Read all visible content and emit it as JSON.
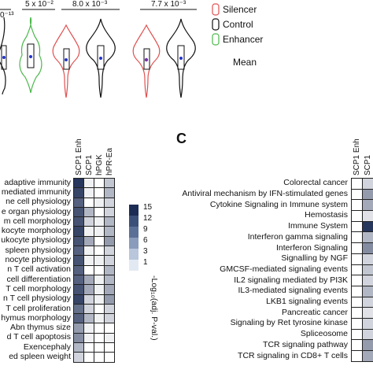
{
  "violin_panel": {
    "pvalues": [
      "5 x 10⁻²",
      "8.0 x 10⁻³",
      "7.7 x 10⁻³"
    ],
    "partial_pvalue": "0⁻¹³",
    "legend": {
      "items": [
        {
          "label": "Silencer",
          "color": "#e05050"
        },
        {
          "label": "Control",
          "color": "#111111"
        },
        {
          "label": "Enhancer",
          "color": "#4cb84c"
        }
      ],
      "mean_label": "Mean"
    }
  },
  "panel_c_letter": "C",
  "colorbar": {
    "ticks": [
      "15",
      "12",
      "9",
      "6",
      "3",
      "1"
    ],
    "title": "-Log₁₀(adj. P-val.)",
    "colors": [
      "#1c2d55",
      "#3b5078",
      "#5b7097",
      "#8a9cbb",
      "#b9c6dc",
      "#e3e9f3"
    ]
  },
  "chart_data": [
    {
      "type": "heatmap",
      "panel": "B",
      "columns": [
        "SCP1 Enh",
        "SCP1",
        "hPGK",
        "hPR-Ea"
      ],
      "rows": [
        "adaptive immunity",
        "mediated immunity",
        "ne cell physiology",
        "e organ physiology",
        "m cell morphology",
        "kocyte morphology",
        "ukocyte physiology",
        "spleen physiology",
        "nocyte physiology",
        "n T cell activation",
        "cell differentiation",
        "T cell morphology",
        "n T cell physiology",
        "T cell proliferation",
        "hymus morphology",
        "Abn thymus size",
        "d T cell apoptosis",
        "Exencephaly",
        "ed spleen weight"
      ],
      "values": [
        [
          14,
          1,
          0,
          4
        ],
        [
          13,
          1,
          0,
          5
        ],
        [
          11,
          0,
          1,
          3
        ],
        [
          12,
          5,
          0,
          3
        ],
        [
          12,
          3,
          1,
          5
        ],
        [
          13,
          1,
          1,
          5
        ],
        [
          12,
          6,
          0,
          7
        ],
        [
          11,
          1,
          0,
          3
        ],
        [
          12,
          1,
          1,
          3
        ],
        [
          11,
          0,
          0,
          5
        ],
        [
          11,
          6,
          1,
          5
        ],
        [
          12,
          6,
          1,
          6
        ],
        [
          13,
          3,
          1,
          7
        ],
        [
          10,
          3,
          0,
          3
        ],
        [
          11,
          5,
          1,
          3
        ],
        [
          7,
          1,
          0,
          0
        ],
        [
          8,
          1,
          0,
          1
        ],
        [
          5,
          0,
          0,
          0
        ],
        [
          3,
          0,
          0,
          0
        ]
      ],
      "value_range": [
        0,
        15
      ]
    },
    {
      "type": "heatmap",
      "panel": "C",
      "columns": [
        "SCP1 Enh",
        "SCP1"
      ],
      "rows": [
        "Colorectal cancer",
        "Antiviral mechanism by IFN-stimulated genes",
        "Cytokine Signaling in Immune system",
        "Hemostasis",
        "Immune System",
        "Interferon gamma signaling",
        "Interferon Signaling",
        "Signalling by NGF",
        "GMCSF-mediated signaling events",
        "IL2 signaling mediated by PI3K",
        "IL3-mediated signaling events",
        "LKB1 signaling events",
        "Pancreatic cancer",
        "Signaling by Ret tyrosine kinase",
        "Spliceosome",
        "TCR signaling pathway",
        "TCR signaling in CD8+ T cells"
      ],
      "values": [
        [
          0,
          3
        ],
        [
          0,
          7
        ],
        [
          0,
          6
        ],
        [
          0,
          2
        ],
        [
          0,
          14
        ],
        [
          0,
          5
        ],
        [
          0,
          8
        ],
        [
          0,
          3
        ],
        [
          0,
          4
        ],
        [
          0,
          3
        ],
        [
          0,
          5
        ],
        [
          0,
          3
        ],
        [
          0,
          2
        ],
        [
          0,
          3
        ],
        [
          0,
          3
        ],
        [
          0,
          7
        ],
        [
          0,
          6
        ]
      ],
      "value_range": [
        0,
        15
      ]
    }
  ]
}
